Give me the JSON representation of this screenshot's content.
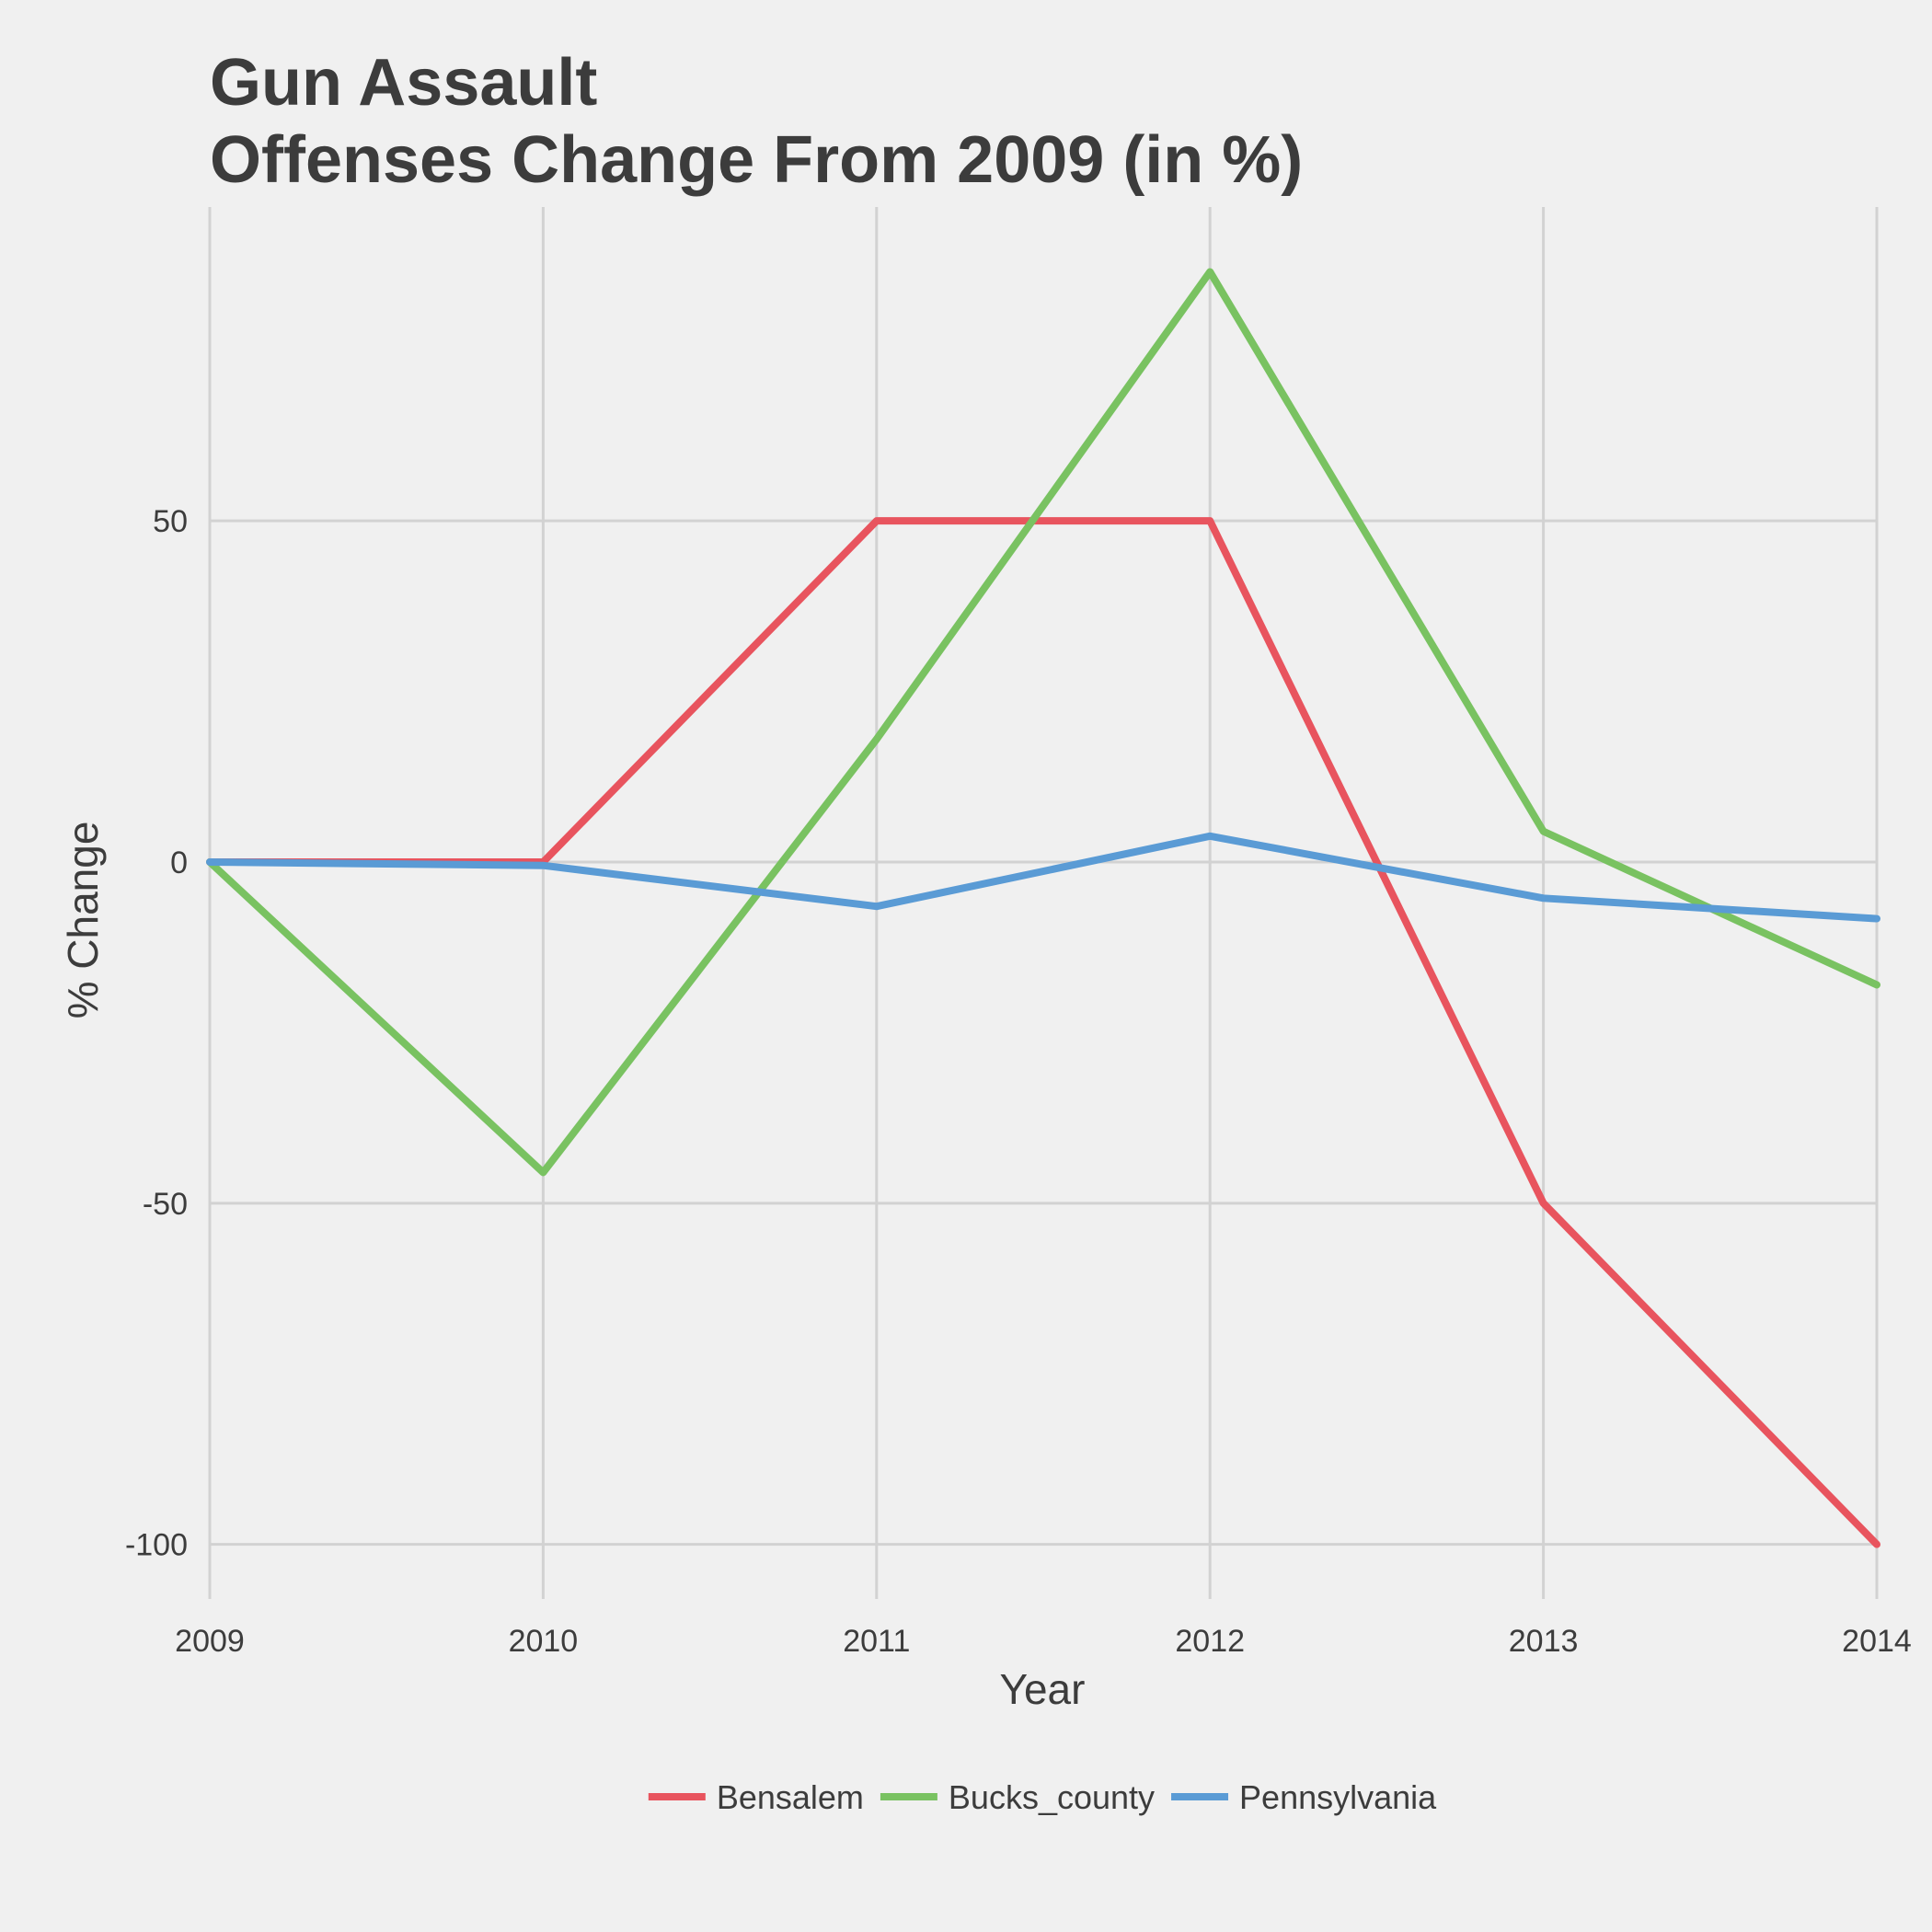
{
  "chart_data": {
    "type": "line",
    "title": [
      "Gun Assault",
      "Offenses Change From 2009 (in %)"
    ],
    "xlabel": "Year",
    "ylabel": "% Change",
    "x": [
      2009,
      2010,
      2011,
      2012,
      2013,
      2014
    ],
    "x_tick_labels": [
      "2009",
      "2010",
      "2011",
      "2012",
      "2013",
      "2014"
    ],
    "y_ticks": [
      50,
      0,
      -50,
      -100
    ],
    "y_tick_labels": [
      "50",
      "0",
      "-50",
      "-100"
    ],
    "ylim": [
      -108,
      96
    ],
    "grid": true,
    "legend_position": "bottom",
    "series": [
      {
        "name": "Bensalem",
        "color": "#e8545e",
        "values": [
          0,
          0,
          50,
          50,
          -50,
          -100
        ]
      },
      {
        "name": "Bucks_county",
        "color": "#79c261",
        "values": [
          0,
          -45.5,
          18,
          86.5,
          4.5,
          -18
        ]
      },
      {
        "name": "Pennsylvania",
        "color": "#5a9bd5",
        "values": [
          0,
          -0.5,
          -6.5,
          3.8,
          -5.3,
          -8.3
        ]
      }
    ]
  }
}
